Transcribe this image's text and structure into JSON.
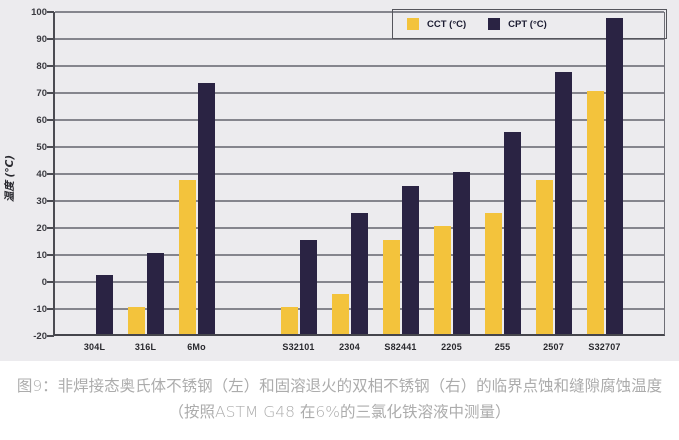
{
  "chart_data": {
    "type": "bar",
    "title": "",
    "ylabel": "温度 (°C)",
    "ylim": [
      -20,
      100
    ],
    "yticks": [
      100,
      90,
      80,
      70,
      60,
      50,
      40,
      30,
      20,
      10,
      0,
      -10,
      -20
    ],
    "bar_base": -20,
    "grid": true,
    "legend_position": "top-right-inside",
    "categories": [
      "304L",
      "316L",
      "6Mo",
      "S32101",
      "2304",
      "S82441",
      "2205",
      "255",
      "2507",
      "S32707"
    ],
    "group_gap_after_index": 2,
    "series": [
      {
        "name": "CCT (°C)",
        "color": "#F3C33C",
        "values": [
          null,
          -10,
          37,
          -10,
          -5,
          15,
          20,
          25,
          37,
          70
        ]
      },
      {
        "name": "CPT (°C)",
        "color": "#2A2343",
        "values": [
          2,
          10,
          73,
          15,
          25,
          35,
          40,
          55,
          77,
          97
        ]
      }
    ]
  },
  "legend": {
    "items": [
      {
        "label": "CCT (°C)",
        "color": "#F3C33C"
      },
      {
        "label": "CPT (°C)",
        "color": "#2A2343"
      }
    ]
  },
  "caption": {
    "line1": "图9：非焊接态奥氏体不锈钢（左）和固溶退火的双相不锈钢（右）的临界点蚀和缝隙腐蚀温度",
    "line2": "（按照ASTM G48 在6%的三氯化铁溶液中测量）"
  },
  "colors": {
    "panel_background": "#ECEBEE",
    "gridline": "#85858D",
    "axis": "#4B4B52",
    "caption_text": "#ACACAC"
  }
}
